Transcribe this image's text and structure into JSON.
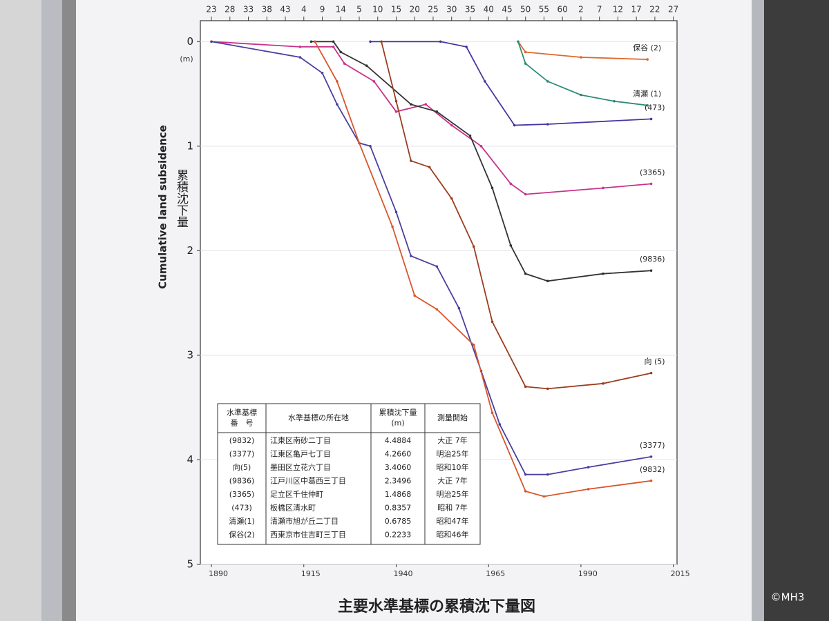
{
  "chart_data": {
    "type": "line",
    "title": "主要水準基標の累積沈下量図",
    "y_label": "Cumulative land subsidence",
    "y_label_ja": "累積沈下量",
    "y_unit": "(m)",
    "watermark": "©MH3",
    "xlim": [
      1887,
      2016
    ],
    "xticks": [
      1890,
      1915,
      1940,
      1965,
      1990,
      2015
    ],
    "ylim": [
      -0.2,
      5
    ],
    "yticks": [
      0,
      1,
      2,
      3,
      4,
      5
    ],
    "y_inverted": true,
    "grid": true,
    "era_labels": [
      "23",
      "28",
      "33",
      "38",
      "43",
      "4",
      "9",
      "14",
      "5",
      "10",
      "15",
      "20",
      "25",
      "30",
      "35",
      "40",
      "45",
      "50",
      "55",
      "60",
      "2",
      "7",
      "12",
      "17",
      "22",
      "27"
    ],
    "series": [
      {
        "name": "保谷 (2)",
        "color": "#e0672a",
        "x": [
          1973,
          1975,
          1990,
          2008
        ],
        "values": [
          0,
          0.1,
          0.15,
          0.17
        ]
      },
      {
        "name": "清瀬 (1)",
        "color": "#2e8b7a",
        "x": [
          1973,
          1975,
          1981,
          1990,
          1999,
          2008
        ],
        "values": [
          0,
          0.21,
          0.38,
          0.51,
          0.57,
          0.61
        ]
      },
      {
        "name": "(473)",
        "color": "#4438a0",
        "x": [
          1933,
          1952,
          1959,
          1964,
          1972,
          1981,
          2009
        ],
        "values": [
          0,
          0,
          0.05,
          0.38,
          0.8,
          0.79,
          0.74
        ]
      },
      {
        "name": "(3365)",
        "color": "#c8318a",
        "x": [
          1890,
          1914,
          1923,
          1926,
          1934,
          1940,
          1948,
          1955,
          1963,
          1971,
          1975,
          1996,
          2009
        ],
        "values": [
          0,
          0.05,
          0.05,
          0.21,
          0.38,
          0.67,
          0.6,
          0.8,
          1.0,
          1.36,
          1.46,
          1.4,
          1.36
        ]
      },
      {
        "name": "(9836)",
        "color": "#333333",
        "x": [
          1917,
          1923,
          1925,
          1932,
          1944,
          1951,
          1960,
          1966,
          1971,
          1975,
          1981,
          1996,
          2009
        ],
        "values": [
          0,
          0,
          0.1,
          0.23,
          0.6,
          0.67,
          0.9,
          1.4,
          1.95,
          2.22,
          2.29,
          2.22,
          2.19
        ]
      },
      {
        "name": "向 (5)",
        "color": "#9a3d1e",
        "x": [
          1936,
          1940,
          1944,
          1949,
          1955,
          1961,
          1966,
          1975,
          1981,
          1996,
          2009
        ],
        "values": [
          0,
          0.57,
          1.14,
          1.2,
          1.5,
          1.96,
          2.68,
          3.3,
          3.32,
          3.27,
          3.17
        ]
      },
      {
        "name": "(3377)",
        "color": "#4a3f9e",
        "x": [
          1890,
          1914,
          1920,
          1924,
          1930,
          1933,
          1940,
          1944,
          1951,
          1957,
          1963,
          1968,
          1975,
          1981,
          1992,
          2009
        ],
        "values": [
          0,
          0.15,
          0.3,
          0.6,
          0.97,
          1.0,
          1.63,
          2.05,
          2.15,
          2.55,
          3.15,
          3.66,
          4.14,
          4.14,
          4.07,
          3.97
        ]
      },
      {
        "name": "(9832)",
        "color": "#d9552b",
        "x": [
          1918,
          1924,
          1930,
          1939,
          1945,
          1951,
          1961,
          1966,
          1975,
          1980,
          1992,
          2009
        ],
        "values": [
          0,
          0.38,
          0.97,
          1.77,
          2.43,
          2.56,
          2.9,
          3.55,
          4.3,
          4.35,
          4.28,
          4.2
        ]
      }
    ],
    "table": {
      "header": [
        [
          "水準基標",
          "番　号"
        ],
        [
          "水準基標の所在地"
        ],
        [
          "累積沈下量",
          "(m)"
        ],
        [
          "測量開始"
        ]
      ],
      "rows": [
        [
          "(9832)",
          "江東区南砂二丁目",
          "4.4884",
          "大正 7年"
        ],
        [
          "(3377)",
          "江東区亀戸七丁目",
          "4.2660",
          "明治25年"
        ],
        [
          "向(5)",
          "墨田区立花六丁目",
          "3.4060",
          "昭和10年"
        ],
        [
          "(9836)",
          "江戸川区中葛西三丁目",
          "2.3496",
          "大正 7年"
        ],
        [
          "(3365)",
          "足立区千住仲町",
          "1.4868",
          "明治25年"
        ],
        [
          "(473)",
          "板橋区清水町",
          "0.8357",
          "昭和 7年"
        ],
        [
          "清瀬(1)",
          "清瀬市旭が丘二丁目",
          "0.6785",
          "昭和47年"
        ],
        [
          "保谷(2)",
          "西東京市住吉町三丁目",
          "0.2233",
          "昭和46年"
        ]
      ]
    }
  }
}
